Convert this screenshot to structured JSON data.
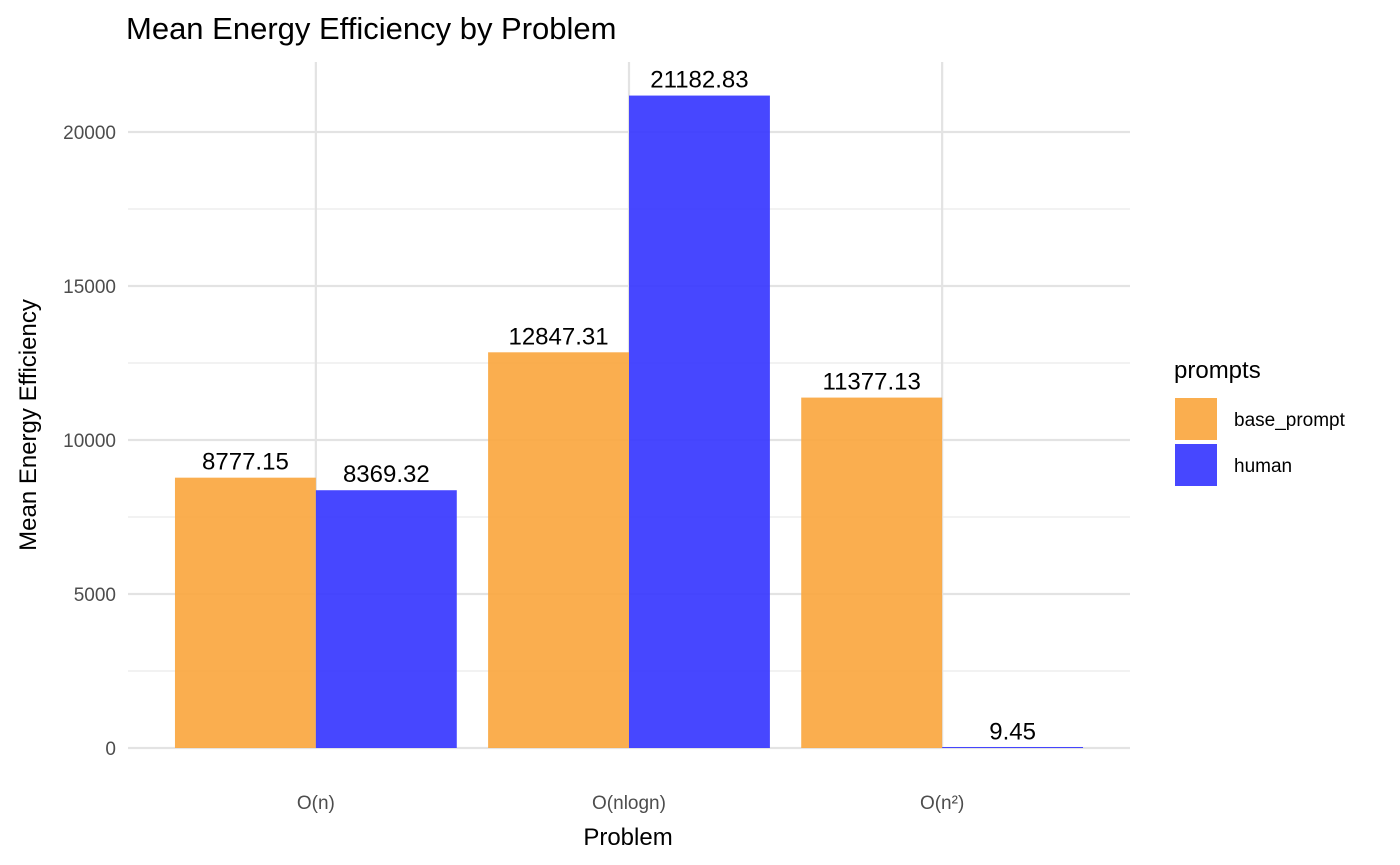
{
  "chart_data": {
    "type": "bar",
    "title": "Mean Energy Efficiency by Problem",
    "xlabel": "Problem",
    "ylabel": "Mean Energy Efficiency",
    "categories": [
      "O(n)",
      "O(nlogn)",
      "O(n²)"
    ],
    "series": [
      {
        "name": "base_prompt",
        "values": [
          8777.15,
          12847.31,
          11377.13
        ],
        "color": "#f9a53c",
        "labels": [
          "8777.15",
          "12847.31",
          "11377.13"
        ]
      },
      {
        "name": "human",
        "values": [
          8369.32,
          21182.83,
          9.45
        ],
        "color": "#3333ff",
        "labels": [
          "8369.32",
          "21182.83",
          "9.45"
        ]
      }
    ],
    "ylim": [
      0,
      22000
    ],
    "yticks": [
      0,
      5000,
      10000,
      15000,
      20000
    ],
    "ytick_labels": [
      "0",
      "5000",
      "10000",
      "15000",
      "20000"
    ],
    "grid": true,
    "legend": {
      "title": "prompts",
      "position": "right"
    }
  }
}
